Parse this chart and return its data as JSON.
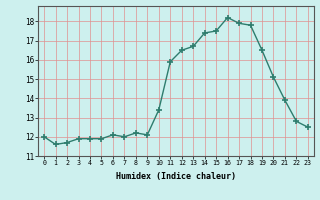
{
  "x": [
    0,
    1,
    2,
    3,
    4,
    5,
    6,
    7,
    8,
    9,
    10,
    11,
    12,
    13,
    14,
    15,
    16,
    17,
    18,
    19,
    20,
    21,
    22,
    23
  ],
  "y": [
    12.0,
    11.6,
    11.7,
    11.9,
    11.9,
    11.9,
    12.1,
    12.0,
    12.2,
    12.1,
    13.4,
    15.9,
    16.5,
    16.7,
    17.4,
    17.5,
    18.2,
    17.9,
    17.8,
    16.5,
    15.1,
    13.9,
    12.8,
    12.5
  ],
  "xlabel": "Humidex (Indice chaleur)",
  "ylim": [
    11,
    18.8
  ],
  "xlim": [
    -0.5,
    23.5
  ],
  "yticks": [
    11,
    12,
    13,
    14,
    15,
    16,
    17,
    18
  ],
  "xticks": [
    0,
    1,
    2,
    3,
    4,
    5,
    6,
    7,
    8,
    9,
    10,
    11,
    12,
    13,
    14,
    15,
    16,
    17,
    18,
    19,
    20,
    21,
    22,
    23
  ],
  "line_color": "#2e7d6e",
  "bg_color": "#cdf0ee",
  "grid_color": "#e09090",
  "marker": "+",
  "marker_size": 4,
  "line_width": 1.0
}
